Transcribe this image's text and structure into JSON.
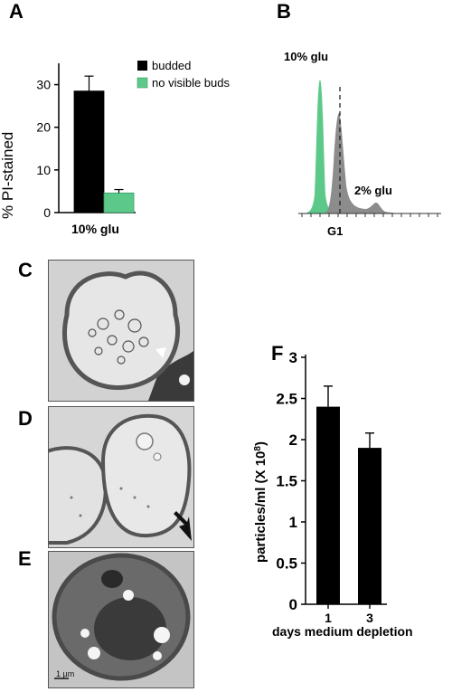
{
  "panels": {
    "a": {
      "letter": "A"
    },
    "b": {
      "letter": "B"
    },
    "c": {
      "letter": "C"
    },
    "d": {
      "letter": "D"
    },
    "e": {
      "letter": "E"
    },
    "f": {
      "letter": "F"
    }
  },
  "panel_a": {
    "ylabel": "% PI-stained",
    "xlabel": "10% glu",
    "ytick_labels": [
      "0",
      "10",
      "20",
      "30"
    ],
    "legend": [
      "budded",
      "no visible buds"
    ]
  },
  "panel_b": {
    "label_10": "10% glu",
    "label_2": "2% glu",
    "xlabel": "G1",
    "color_10": "#5cc98a",
    "color_2": "#8c8c8c"
  },
  "panel_e": {
    "scale_label": "1 µm"
  },
  "panel_f": {
    "ylabel": "particles/ml (X 10",
    "ylabel_sup": "8",
    "ylabel_end": ")",
    "xlabel": "days medium depletion",
    "ytick_labels": [
      "0",
      "0.5",
      "1",
      "1.5",
      "2",
      "2.5",
      "3"
    ],
    "xtick_labels": [
      "1",
      "3"
    ]
  },
  "chart_data": [
    {
      "type": "bar",
      "panel": "A",
      "categories": [
        "10% glu"
      ],
      "series": [
        {
          "name": "budded",
          "values": [
            28.5
          ],
          "error": [
            3.5
          ],
          "color": "#000000"
        },
        {
          "name": "no visible buds",
          "values": [
            4.6
          ],
          "error": [
            0.8
          ],
          "color": "#5cc98a"
        }
      ],
      "xlabel": "10% glu",
      "ylabel": "% PI-stained",
      "ylim": [
        0,
        35
      ],
      "yticks": [
        0,
        10,
        20,
        30
      ],
      "legend_position": "top-right"
    },
    {
      "type": "area",
      "panel": "B",
      "x_marker": "G1",
      "series": [
        {
          "name": "10% glu",
          "color": "#5cc98a"
        },
        {
          "name": "2% glu",
          "color": "#8c8c8c"
        }
      ]
    },
    {
      "type": "bar",
      "panel": "F",
      "categories": [
        "1",
        "3"
      ],
      "values": [
        2.4,
        1.9
      ],
      "errors": [
        0.25,
        0.18
      ],
      "xlabel": "days medium depletion",
      "ylabel": "particles/ml (X 10^8)",
      "ylim": [
        0,
        3
      ],
      "yticks": [
        0,
        0.5,
        1,
        1.5,
        2,
        2.5,
        3
      ]
    }
  ]
}
